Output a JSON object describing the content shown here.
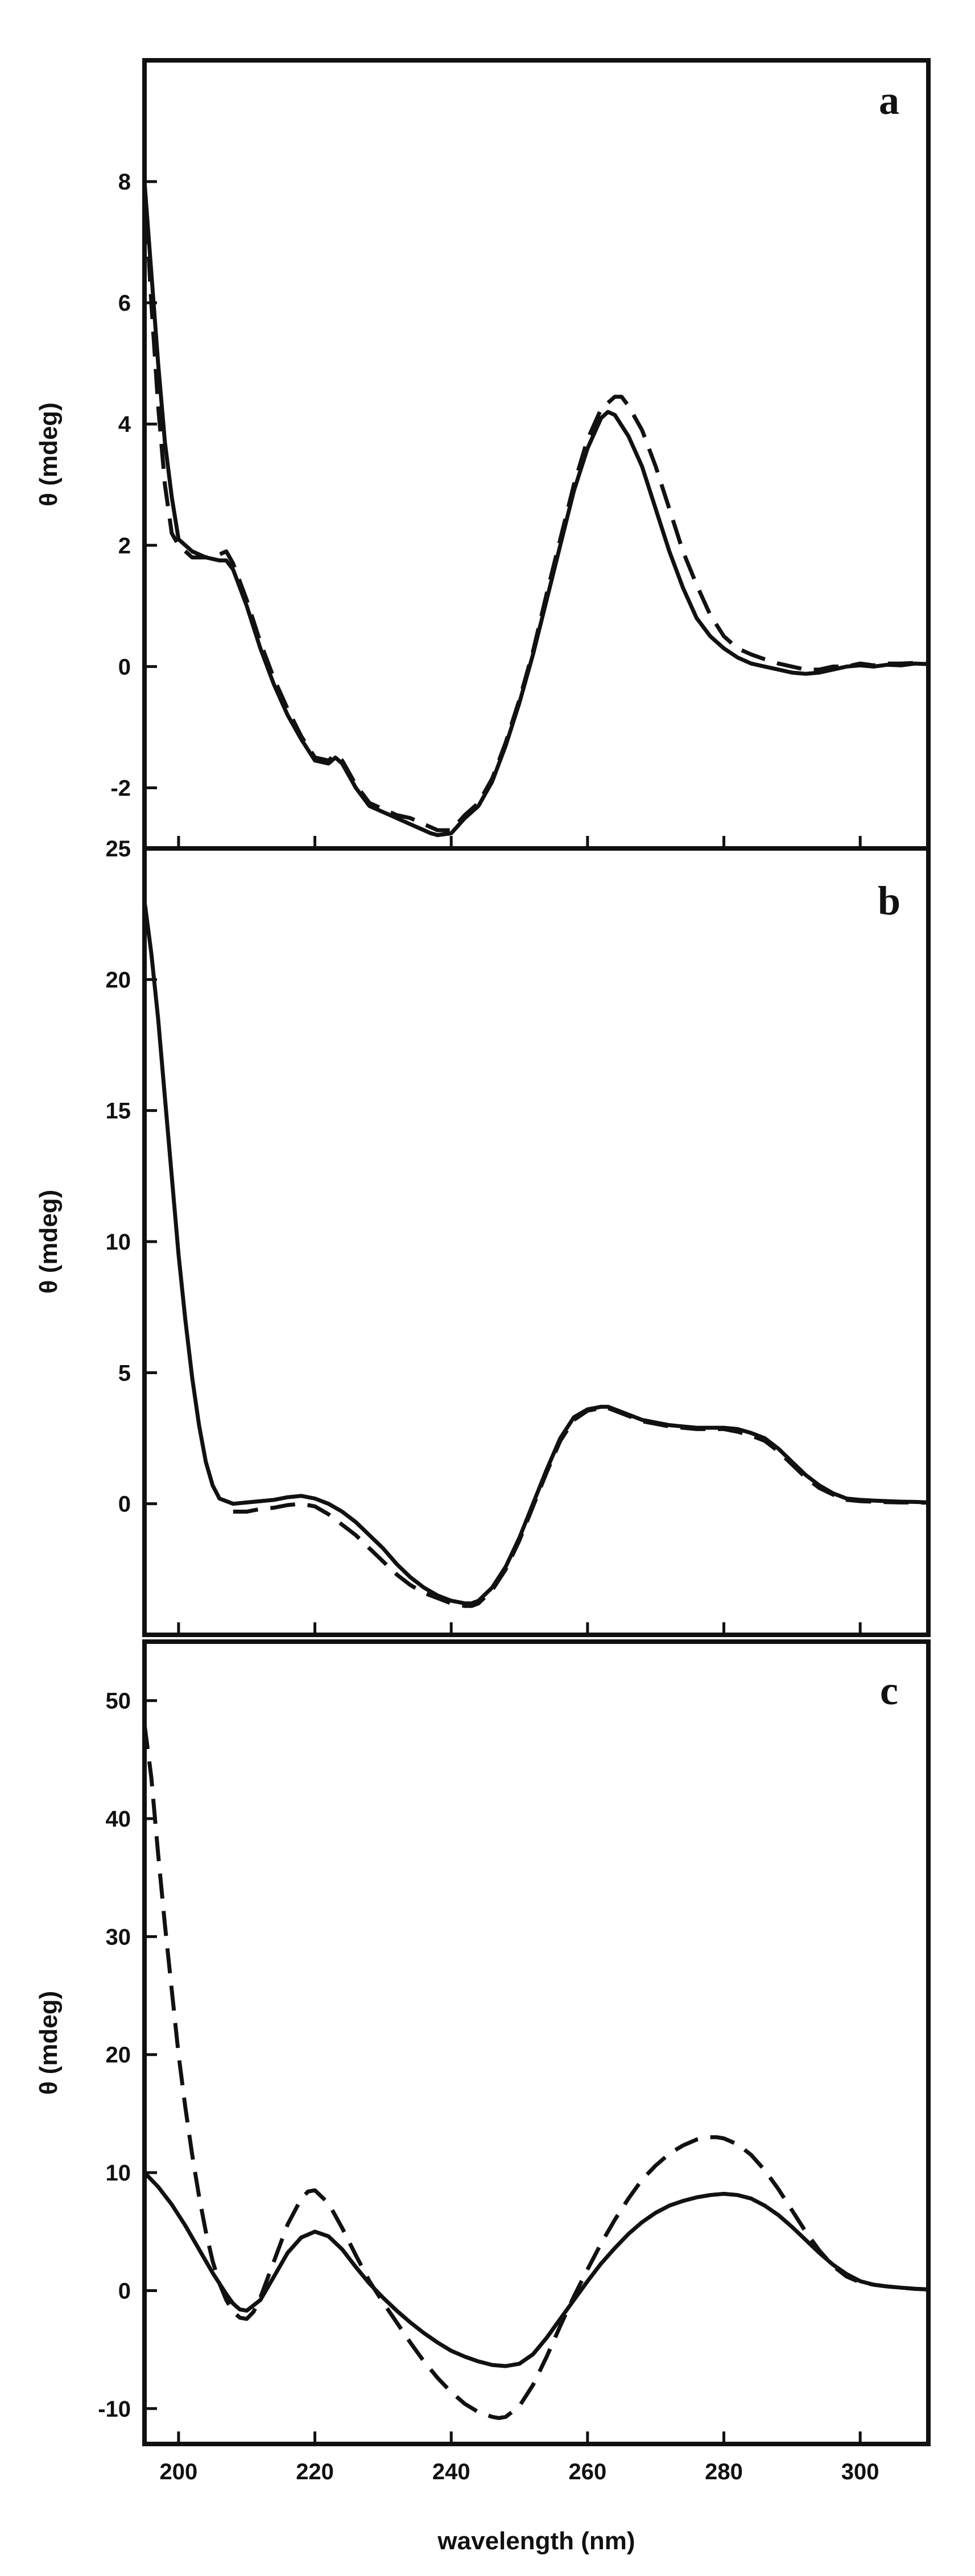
{
  "chart_data": [
    {
      "type": "line",
      "panel": "a",
      "xlabel": "",
      "ylabel": "θ (mdeg)",
      "xlim": [
        195,
        310
      ],
      "ylim": [
        -3,
        10
      ],
      "yticks": [
        -2,
        0,
        2,
        4,
        6,
        8
      ],
      "xticks": [
        200,
        220,
        240,
        260,
        280,
        300
      ],
      "show_x_tick_labels": false,
      "grid": false,
      "series": [
        {
          "style": "solid",
          "x": [
            195,
            196,
            197,
            198,
            199,
            200,
            202,
            204,
            206,
            207,
            208,
            210,
            212,
            214,
            216,
            218,
            220,
            222,
            223,
            224,
            226,
            228,
            230,
            232,
            234,
            236,
            237,
            238,
            240,
            242,
            244,
            246,
            248,
            250,
            252,
            254,
            256,
            258,
            260,
            262,
            263,
            264,
            266,
            268,
            270,
            272,
            274,
            276,
            278,
            280,
            282,
            284,
            286,
            288,
            290,
            292,
            294,
            296,
            298,
            300,
            302,
            304,
            306,
            308,
            310
          ],
          "y": [
            8.0,
            6.5,
            5.0,
            3.7,
            2.8,
            2.1,
            1.9,
            1.8,
            1.75,
            1.75,
            1.6,
            1.0,
            0.3,
            -0.3,
            -0.8,
            -1.2,
            -1.55,
            -1.6,
            -1.5,
            -1.6,
            -2.0,
            -2.3,
            -2.4,
            -2.5,
            -2.6,
            -2.7,
            -2.75,
            -2.78,
            -2.75,
            -2.5,
            -2.3,
            -1.9,
            -1.3,
            -0.6,
            0.2,
            1.1,
            2.0,
            2.9,
            3.6,
            4.1,
            4.2,
            4.15,
            3.8,
            3.3,
            2.6,
            1.9,
            1.3,
            0.8,
            0.5,
            0.3,
            0.15,
            0.05,
            0.0,
            -0.05,
            -0.1,
            -0.12,
            -0.1,
            -0.05,
            0.0,
            0.02,
            0.0,
            0.03,
            0.02,
            0.05,
            0.04
          ]
        },
        {
          "style": "dashed",
          "x": [
            195,
            196,
            197,
            198,
            199,
            200,
            202,
            204,
            206,
            207,
            208,
            210,
            212,
            214,
            216,
            218,
            220,
            222,
            223,
            224,
            226,
            228,
            230,
            232,
            234,
            236,
            237,
            238,
            240,
            242,
            244,
            246,
            248,
            250,
            252,
            254,
            256,
            258,
            260,
            262,
            264,
            265,
            266,
            268,
            270,
            272,
            274,
            276,
            278,
            280,
            282,
            284,
            286,
            288,
            290,
            292,
            294,
            296,
            298,
            300,
            302,
            304,
            306,
            308,
            310
          ],
          "y": [
            8.0,
            6.0,
            4.3,
            3.0,
            2.2,
            2.0,
            1.8,
            1.8,
            1.85,
            1.9,
            1.7,
            1.1,
            0.4,
            -0.2,
            -0.7,
            -1.15,
            -1.5,
            -1.55,
            -1.45,
            -1.55,
            -1.95,
            -2.25,
            -2.35,
            -2.45,
            -2.5,
            -2.6,
            -2.65,
            -2.7,
            -2.7,
            -2.45,
            -2.25,
            -1.85,
            -1.25,
            -0.55,
            0.25,
            1.2,
            2.1,
            3.0,
            3.75,
            4.25,
            4.45,
            4.45,
            4.3,
            3.9,
            3.3,
            2.6,
            1.9,
            1.35,
            0.85,
            0.5,
            0.3,
            0.2,
            0.12,
            0.05,
            0.0,
            -0.05,
            -0.05,
            0.0,
            0.0,
            0.05,
            0.02,
            0.05,
            0.05,
            0.06,
            0.05
          ]
        }
      ]
    },
    {
      "type": "line",
      "panel": "b",
      "xlabel": "",
      "ylabel": "θ (mdeg)",
      "xlim": [
        195,
        310
      ],
      "ylim": [
        -5,
        25
      ],
      "yticks": [
        0,
        5,
        10,
        15,
        20,
        25
      ],
      "xticks": [
        200,
        220,
        240,
        260,
        280,
        300
      ],
      "show_x_tick_labels": false,
      "grid": false,
      "series": [
        {
          "style": "solid",
          "x": [
            195,
            196,
            197,
            198,
            199,
            200,
            201,
            202,
            203,
            204,
            205,
            206,
            208,
            210,
            212,
            214,
            216,
            218,
            220,
            222,
            224,
            226,
            228,
            230,
            232,
            234,
            236,
            238,
            240,
            242,
            243,
            244,
            246,
            248,
            250,
            252,
            254,
            256,
            258,
            260,
            262,
            263,
            264,
            266,
            268,
            270,
            272,
            274,
            276,
            278,
            280,
            282,
            284,
            286,
            288,
            290,
            292,
            294,
            296,
            298,
            300,
            302,
            304,
            306,
            308,
            310
          ],
          "y": [
            23.0,
            21.0,
            18.5,
            15.5,
            12.5,
            9.5,
            7.0,
            4.8,
            3.0,
            1.6,
            0.7,
            0.2,
            0.0,
            0.05,
            0.1,
            0.15,
            0.25,
            0.3,
            0.2,
            0.0,
            -0.3,
            -0.7,
            -1.2,
            -1.7,
            -2.3,
            -2.8,
            -3.2,
            -3.5,
            -3.7,
            -3.8,
            -3.8,
            -3.7,
            -3.2,
            -2.4,
            -1.3,
            0.0,
            1.3,
            2.5,
            3.3,
            3.6,
            3.7,
            3.7,
            3.6,
            3.4,
            3.2,
            3.1,
            3.0,
            2.95,
            2.9,
            2.9,
            2.9,
            2.85,
            2.7,
            2.5,
            2.1,
            1.6,
            1.1,
            0.7,
            0.4,
            0.2,
            0.15,
            0.12,
            0.1,
            0.08,
            0.07,
            0.05
          ]
        },
        {
          "style": "dashed",
          "x": [
            208,
            210,
            212,
            214,
            216,
            218,
            220,
            222,
            224,
            226,
            228,
            230,
            232,
            234,
            236,
            238,
            240,
            242,
            243,
            244,
            246,
            248,
            250,
            252,
            254,
            256,
            258,
            260,
            262,
            263,
            264,
            266,
            268,
            270,
            272,
            274,
            276,
            278,
            280,
            282,
            284,
            286,
            288,
            290,
            292,
            294,
            296,
            298,
            300,
            302,
            304,
            306,
            308,
            310
          ],
          "y": [
            -0.3,
            -0.3,
            -0.2,
            -0.15,
            -0.05,
            0.0,
            -0.1,
            -0.4,
            -0.8,
            -1.2,
            -1.7,
            -2.2,
            -2.7,
            -3.1,
            -3.4,
            -3.6,
            -3.8,
            -3.9,
            -3.9,
            -3.8,
            -3.3,
            -2.5,
            -1.4,
            -0.1,
            1.2,
            2.4,
            3.2,
            3.55,
            3.65,
            3.65,
            3.55,
            3.35,
            3.15,
            3.05,
            2.95,
            2.9,
            2.85,
            2.85,
            2.85,
            2.75,
            2.6,
            2.4,
            2.0,
            1.5,
            1.0,
            0.6,
            0.35,
            0.15,
            0.1,
            0.08,
            0.06,
            0.05,
            0.05,
            0.04
          ]
        }
      ]
    },
    {
      "type": "line",
      "panel": "c",
      "xlabel": "wavelength (nm)",
      "ylabel": "θ (mdeg)",
      "xlim": [
        195,
        310
      ],
      "ylim": [
        -13,
        55
      ],
      "yticks": [
        -10,
        0,
        10,
        20,
        30,
        40,
        50
      ],
      "xticks": [
        200,
        220,
        240,
        260,
        280,
        300
      ],
      "show_x_tick_labels": true,
      "grid": false,
      "series": [
        {
          "style": "solid",
          "x": [
            195,
            197,
            199,
            201,
            203,
            205,
            207,
            208,
            209,
            210,
            212,
            214,
            216,
            218,
            220,
            222,
            224,
            226,
            228,
            230,
            232,
            234,
            236,
            238,
            240,
            242,
            244,
            246,
            248,
            250,
            252,
            254,
            256,
            258,
            260,
            262,
            264,
            266,
            268,
            270,
            272,
            274,
            276,
            278,
            280,
            282,
            284,
            286,
            288,
            290,
            292,
            294,
            296,
            298,
            300,
            302,
            304,
            306,
            308,
            310
          ],
          "y": [
            10.0,
            8.8,
            7.3,
            5.5,
            3.5,
            1.5,
            -0.3,
            -1.1,
            -1.6,
            -1.7,
            -0.8,
            1.2,
            3.2,
            4.5,
            5.0,
            4.6,
            3.5,
            2.0,
            0.6,
            -0.6,
            -1.7,
            -2.7,
            -3.6,
            -4.4,
            -5.1,
            -5.6,
            -6.0,
            -6.3,
            -6.4,
            -6.2,
            -5.4,
            -4.0,
            -2.4,
            -0.8,
            0.8,
            2.3,
            3.6,
            4.8,
            5.8,
            6.6,
            7.2,
            7.6,
            7.9,
            8.1,
            8.2,
            8.1,
            7.8,
            7.2,
            6.4,
            5.4,
            4.3,
            3.2,
            2.2,
            1.4,
            0.8,
            0.5,
            0.35,
            0.25,
            0.15,
            0.1
          ]
        },
        {
          "style": "dashed",
          "x": [
            195,
            196,
            197,
            198,
            199,
            200,
            201,
            202,
            203,
            204,
            205,
            206,
            207,
            208,
            209,
            210,
            211,
            212,
            214,
            216,
            218,
            219,
            220,
            222,
            224,
            226,
            228,
            230,
            232,
            234,
            236,
            238,
            240,
            242,
            244,
            246,
            247,
            248,
            250,
            252,
            254,
            256,
            258,
            260,
            262,
            264,
            266,
            268,
            270,
            272,
            274,
            276,
            278,
            279,
            280,
            282,
            284,
            286,
            288,
            290,
            292,
            294,
            296,
            298,
            300,
            302,
            304,
            306,
            308,
            310
          ],
          "y": [
            48.0,
            43.5,
            37.0,
            31.0,
            25.5,
            20.0,
            15.5,
            11.5,
            8.0,
            5.0,
            2.5,
            0.6,
            -0.8,
            -1.8,
            -2.3,
            -2.4,
            -1.8,
            -0.6,
            2.5,
            5.6,
            7.8,
            8.4,
            8.5,
            7.4,
            5.3,
            3.0,
            0.8,
            -1.0,
            -2.7,
            -4.4,
            -6.0,
            -7.4,
            -8.6,
            -9.6,
            -10.3,
            -10.7,
            -10.8,
            -10.7,
            -9.8,
            -8.0,
            -5.6,
            -3.0,
            -0.5,
            1.8,
            4.0,
            6.0,
            7.8,
            9.4,
            10.6,
            11.6,
            12.3,
            12.8,
            13.0,
            13.0,
            12.9,
            12.4,
            11.5,
            10.2,
            8.6,
            6.8,
            5.0,
            3.4,
            2.1,
            1.2,
            0.7,
            0.5,
            0.35,
            0.25,
            0.15,
            0.1
          ]
        }
      ]
    }
  ]
}
